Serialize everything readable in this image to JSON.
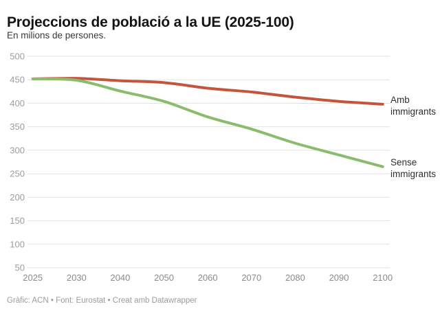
{
  "header": {
    "title": "Projeccions de població a la UE (2025-100)",
    "subtitle": "En milions de persones."
  },
  "chart_data": {
    "type": "line",
    "x_labels": [
      "2025",
      "2030",
      "2040",
      "2050",
      "2060",
      "2070",
      "2080",
      "2090",
      "2100"
    ],
    "y_ticks": [
      500,
      450,
      400,
      350,
      300,
      250,
      200,
      150,
      100,
      50
    ],
    "ylim": [
      50,
      500
    ],
    "grid": true,
    "legend_position": "end-of-line-labels-right",
    "series": [
      {
        "name": "Amb immigrants",
        "color": "#c4543c",
        "values": [
          452,
          453,
          448,
          444,
          432,
          424,
          413,
          404,
          398
        ]
      },
      {
        "name": "Sense immigrants",
        "color": "#8abc6e",
        "values": [
          452,
          449,
          426,
          404,
          371,
          345,
          315,
          290,
          265
        ]
      }
    ],
    "axis_colors": {
      "y_label": "#9d9d9d",
      "x_label": "#8b8b8b",
      "gridline": "#e2e2e2"
    }
  },
  "footer": {
    "text": "Gràfic: ACN • Font: Eurostat • Creat amb Datawrapper"
  }
}
